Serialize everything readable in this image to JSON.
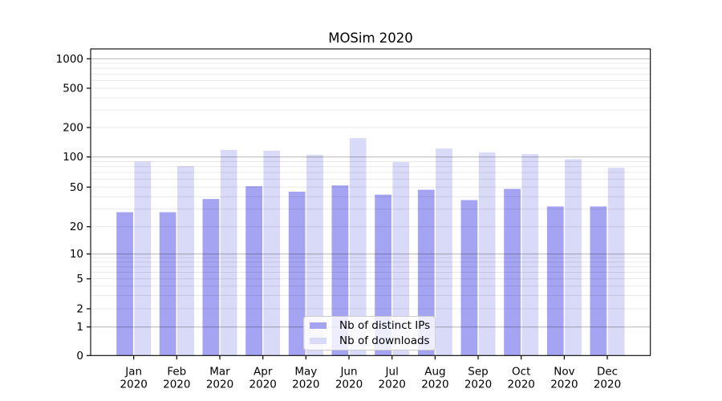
{
  "chart_data": {
    "type": "bar",
    "title": "MOSim 2020",
    "categories": [
      "Jan",
      "Feb",
      "Mar",
      "Apr",
      "May",
      "Jun",
      "Jul",
      "Aug",
      "Sep",
      "Oct",
      "Nov",
      "Dec"
    ],
    "category_year": "2020",
    "series": [
      {
        "name": "Nb of distinct IPs",
        "color": "#a4a4f2",
        "values": [
          28,
          28,
          38,
          51,
          45,
          52,
          42,
          47,
          37,
          48,
          32,
          32
        ]
      },
      {
        "name": "Nb of downloads",
        "color": "#d9d9f8",
        "values": [
          90,
          81,
          118,
          116,
          105,
          156,
          89,
          122,
          111,
          107,
          95,
          78
        ]
      }
    ],
    "xlabel": "",
    "ylabel": "",
    "yscale": "log-like (compressed near zero, 0 shown at axis bottom)",
    "y_ticks": [
      0,
      1,
      2,
      5,
      10,
      20,
      50,
      100,
      200,
      500,
      1000
    ],
    "ylim": [
      0,
      1260
    ],
    "grid": "on (minor gridlines per log decade, darker lines at 1, 10, 100, 1000)",
    "legend_position": "lower center"
  }
}
